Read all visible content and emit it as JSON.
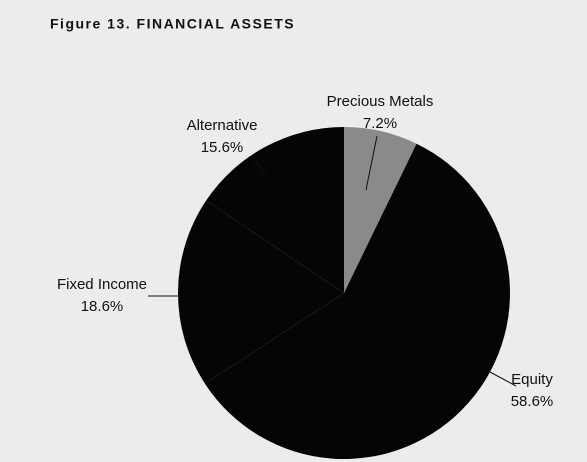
{
  "chart_data": {
    "type": "pie",
    "title": "Figure 13. FINANCIAL ASSETS",
    "categories": [
      "Precious Metals",
      "Equity",
      "Fixed Income",
      "Alternative"
    ],
    "values": [
      7.2,
      58.6,
      18.6,
      15.6
    ],
    "value_labels": [
      "7.2%",
      "58.6%",
      "18.6%",
      "15.6%"
    ],
    "colors": [
      "#8a8a8a",
      "#050505",
      "#050505",
      "#050505"
    ]
  }
}
